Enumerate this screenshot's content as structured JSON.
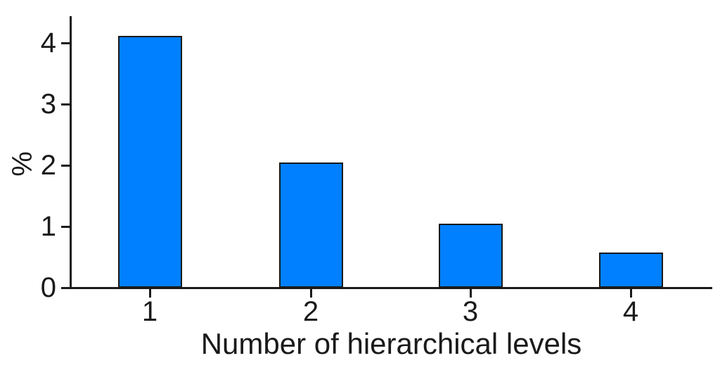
{
  "figure": {
    "background": "#ffffff"
  },
  "chart_data": {
    "type": "bar",
    "title": "",
    "xlabel": "Number of hierarchical levels",
    "ylabel": "%",
    "categories": [
      "1",
      "2",
      "3",
      "4"
    ],
    "values": [
      4.12,
      2.05,
      1.05,
      0.58
    ],
    "ylim": [
      0,
      4.43
    ],
    "yticks": [
      0,
      1,
      2,
      3,
      4
    ],
    "grid": false,
    "legend_position": "none",
    "bar_color": "#0080FF",
    "bar_border_color": "#1a1a1a",
    "axis_color": "#1a1a1a",
    "text_color": "#1a1a1a"
  }
}
